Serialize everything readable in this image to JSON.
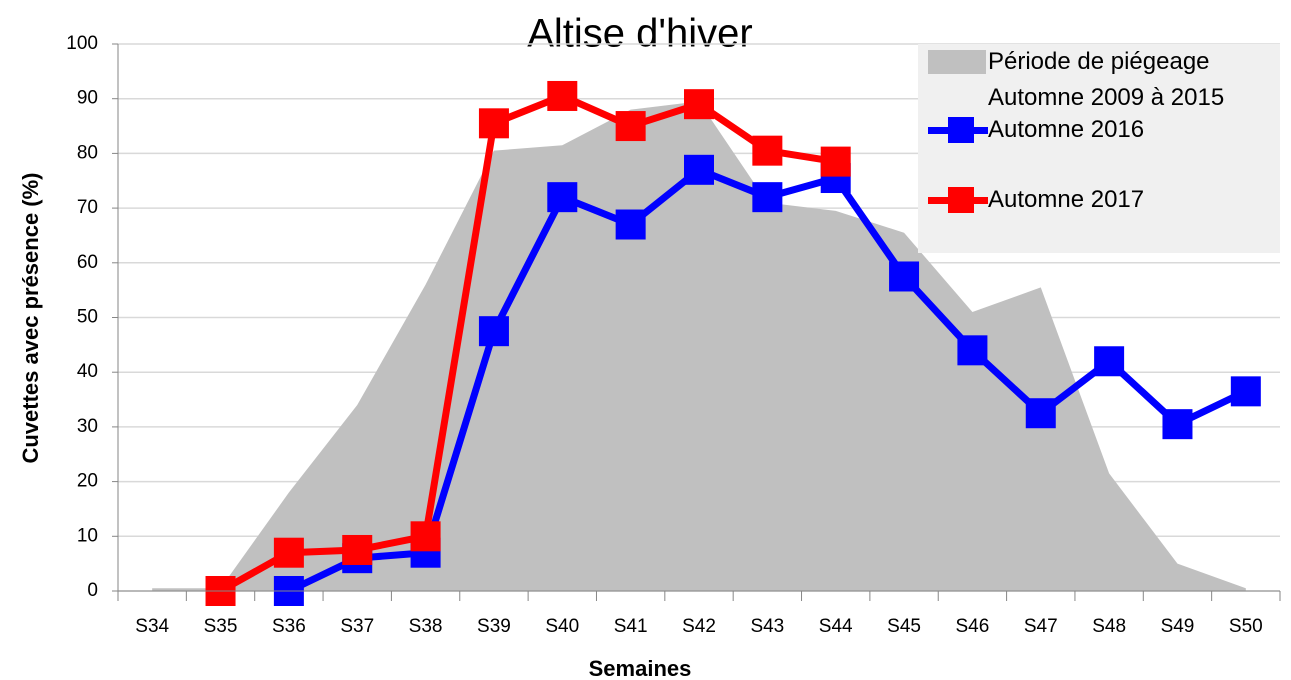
{
  "chart_data": {
    "type": "line",
    "title": "Altise d'hiver",
    "x_label": "Semaines",
    "y_label": "Cuvettes avec présence (%)",
    "categories": [
      "S34",
      "S35",
      "S36",
      "S37",
      "S38",
      "S39",
      "S40",
      "S41",
      "S42",
      "S43",
      "S44",
      "S45",
      "S46",
      "S47",
      "S48",
      "S49",
      "S50"
    ],
    "series": [
      {
        "name": "Période de piégeage Automne 2009 à 2015",
        "kind": "area",
        "color": "#c0c0c0",
        "values": [
          0.5,
          0.5,
          18,
          34,
          56,
          80.5,
          81.5,
          88,
          89.5,
          71,
          69.5,
          65.5,
          51,
          55.5,
          21.5,
          5,
          0.5
        ]
      },
      {
        "name": "Automne 2016",
        "kind": "line",
        "color": "#0000ff",
        "values": [
          null,
          null,
          0,
          6,
          7,
          47.5,
          72,
          67,
          77,
          72,
          75.5,
          57.5,
          44,
          32.5,
          42,
          30.5,
          36.5
        ]
      },
      {
        "name": "Automne 2017",
        "kind": "line",
        "color": "#ff0000",
        "values": [
          null,
          0,
          7,
          7.5,
          10,
          85.5,
          90.5,
          85,
          89,
          80.5,
          78.5,
          null,
          null,
          null,
          null,
          null,
          null
        ]
      }
    ],
    "ylim": [
      0,
      100
    ],
    "yticks": [
      0,
      10,
      20,
      30,
      40,
      50,
      60,
      70,
      80,
      90,
      100
    ],
    "grid": true,
    "legend": "top-right"
  }
}
